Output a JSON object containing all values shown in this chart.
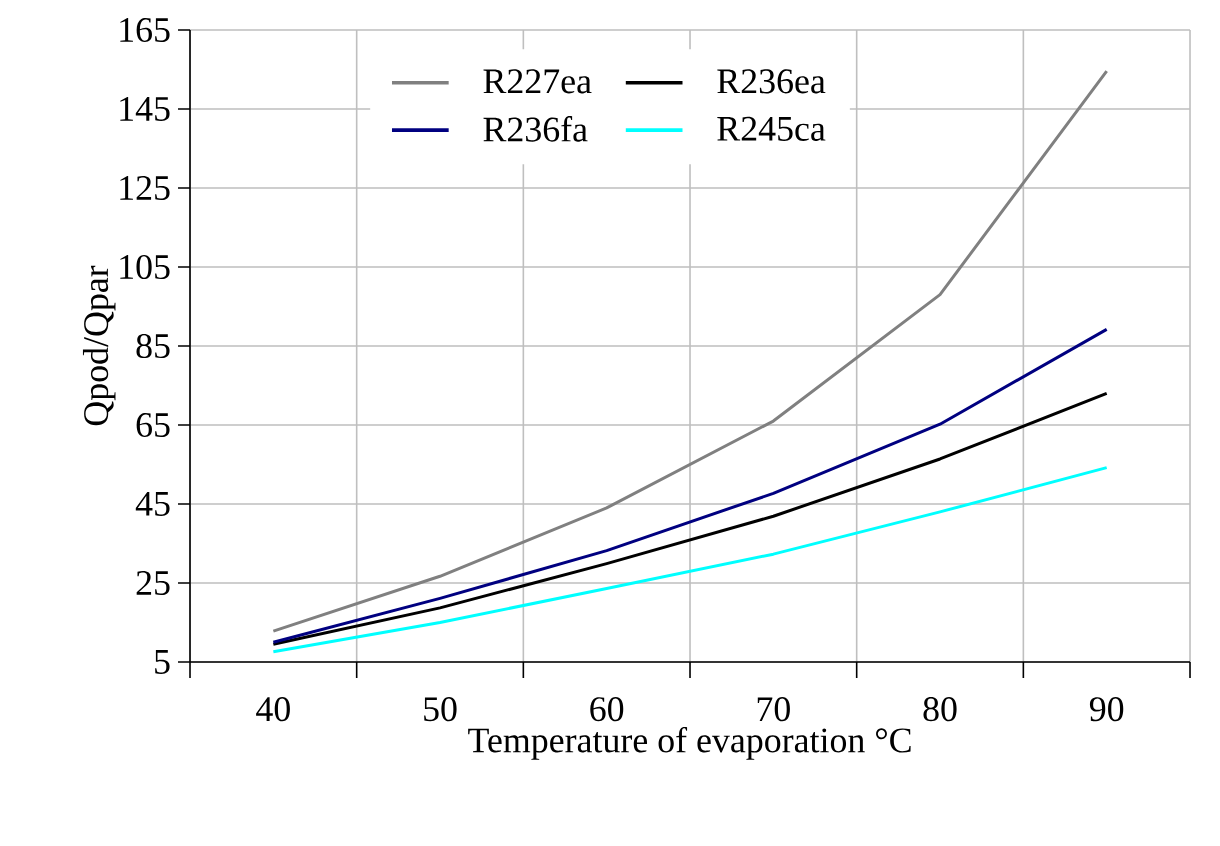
{
  "chart_data": {
    "type": "line",
    "xlabel": "Temperature of evaporation °C",
    "ylabel": "Qpod/Qpar",
    "categories": [
      "40",
      "50",
      "60",
      "70",
      "80",
      "90"
    ],
    "series": [
      {
        "name": "R227ea",
        "color": "#808080",
        "values": [
          12.8,
          26.7,
          44,
          66,
          98,
          154.6
        ]
      },
      {
        "name": "R236ea",
        "color": "#000000",
        "values": [
          9.5,
          18.7,
          29.9,
          41.9,
          56.4,
          73
        ]
      },
      {
        "name": "R236fa",
        "color": "#000080",
        "values": [
          10,
          21.1,
          33.2,
          47.7,
          65.2,
          89.2
        ]
      },
      {
        "name": "R245ca",
        "color": "#00ffff",
        "values": [
          7.6,
          15,
          23.6,
          32.3,
          43,
          54.2
        ]
      }
    ],
    "ylim": [
      5,
      165
    ],
    "yticks": [
      5,
      25,
      45,
      65,
      85,
      105,
      125,
      145,
      165
    ],
    "grid": true,
    "legend": "top",
    "marker": "none",
    "line_style": "solid"
  }
}
